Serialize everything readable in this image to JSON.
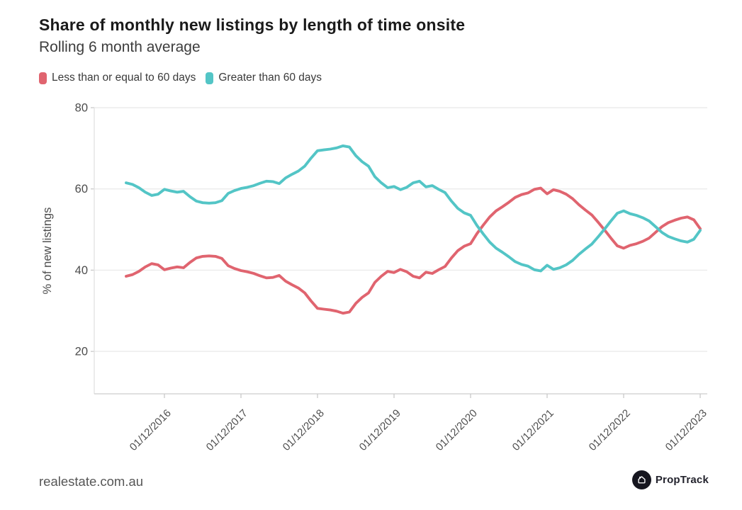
{
  "header": {
    "title": "Share of monthly new listings by length of time onsite",
    "subtitle": "Rolling 6 month average"
  },
  "legend": [
    {
      "label": "Less than or equal to 60 days",
      "color": "#e0646f"
    },
    {
      "label": "Greater than 60 days",
      "color": "#53c5c6"
    }
  ],
  "footer": {
    "site": "realestate.com.au",
    "logo_text": "PropTrack"
  },
  "chart_data": {
    "type": "line",
    "title": "Share of monthly new listings by length of time onsite",
    "subtitle": "Rolling 6 month average",
    "xlabel": "",
    "ylabel": "% of new listings",
    "ylim": [
      10,
      80
    ],
    "y_ticks": [
      80,
      60,
      40,
      20
    ],
    "grid": "horizontal",
    "legend_position": "top-left",
    "x_freq": "monthly",
    "x_start": "01/06/2016",
    "x_end": "01/12/2023",
    "x_tick_labels": [
      "01/12/2016",
      "01/12/2017",
      "01/12/2018",
      "01/12/2019",
      "01/12/2020",
      "01/12/2021",
      "01/12/2022",
      "01/12/2023"
    ],
    "months": [
      "2016-06",
      "2016-07",
      "2016-08",
      "2016-09",
      "2016-10",
      "2016-11",
      "2016-12",
      "2017-01",
      "2017-02",
      "2017-03",
      "2017-04",
      "2017-05",
      "2017-06",
      "2017-07",
      "2017-08",
      "2017-09",
      "2017-10",
      "2017-11",
      "2017-12",
      "2018-01",
      "2018-02",
      "2018-03",
      "2018-04",
      "2018-05",
      "2018-06",
      "2018-07",
      "2018-08",
      "2018-09",
      "2018-10",
      "2018-11",
      "2018-12",
      "2019-01",
      "2019-02",
      "2019-03",
      "2019-04",
      "2019-05",
      "2019-06",
      "2019-07",
      "2019-08",
      "2019-09",
      "2019-10",
      "2019-11",
      "2019-12",
      "2020-01",
      "2020-02",
      "2020-03",
      "2020-04",
      "2020-05",
      "2020-06",
      "2020-07",
      "2020-08",
      "2020-09",
      "2020-10",
      "2020-11",
      "2020-12",
      "2021-01",
      "2021-02",
      "2021-03",
      "2021-04",
      "2021-05",
      "2021-06",
      "2021-07",
      "2021-08",
      "2021-09",
      "2021-10",
      "2021-11",
      "2021-12",
      "2022-01",
      "2022-02",
      "2022-03",
      "2022-04",
      "2022-05",
      "2022-06",
      "2022-07",
      "2022-08",
      "2022-09",
      "2022-10",
      "2022-11",
      "2022-12",
      "2023-01",
      "2023-02",
      "2023-03",
      "2023-04",
      "2023-05",
      "2023-06",
      "2023-07",
      "2023-08",
      "2023-09",
      "2023-10",
      "2023-11",
      "2023-12"
    ],
    "series": [
      {
        "name": "Less than or equal to 60 days",
        "color": "#e0646f",
        "values": [
          38.5,
          38.9,
          39.7,
          40.8,
          41.6,
          41.3,
          40.1,
          40.5,
          40.8,
          40.6,
          41.9,
          43.0,
          43.4,
          43.5,
          43.4,
          42.9,
          41.1,
          40.4,
          39.9,
          39.6,
          39.2,
          38.6,
          38.1,
          38.2,
          38.7,
          37.3,
          36.4,
          35.6,
          34.4,
          32.4,
          30.6,
          30.4,
          30.2,
          29.9,
          29.4,
          29.7,
          31.8,
          33.3,
          34.4,
          37.0,
          38.5,
          39.7,
          39.4,
          40.2,
          39.6,
          38.5,
          38.1,
          39.5,
          39.2,
          40.1,
          40.9,
          43.0,
          44.8,
          45.9,
          46.5,
          49.0,
          51.1,
          53.1,
          54.6,
          55.6,
          56.7,
          57.9,
          58.6,
          59.0,
          59.9,
          60.2,
          58.8,
          59.8,
          59.4,
          58.7,
          57.6,
          56.1,
          54.8,
          53.6,
          51.8,
          49.9,
          47.9,
          46.0,
          45.4,
          46.1,
          46.5,
          47.1,
          47.9,
          49.3,
          50.7,
          51.7,
          52.3,
          52.8,
          53.1,
          52.4,
          50.2
        ]
      },
      {
        "name": "Greater than 60 days",
        "color": "#53c5c6",
        "values": [
          61.5,
          61.1,
          60.3,
          59.2,
          58.4,
          58.7,
          59.9,
          59.5,
          59.2,
          59.4,
          58.1,
          57.0,
          56.6,
          56.5,
          56.6,
          57.1,
          58.9,
          59.6,
          60.1,
          60.4,
          60.8,
          61.4,
          61.9,
          61.8,
          61.3,
          62.7,
          63.6,
          64.4,
          65.6,
          67.6,
          69.4,
          69.6,
          69.8,
          70.1,
          70.6,
          70.3,
          68.2,
          66.7,
          65.6,
          63.0,
          61.5,
          60.3,
          60.6,
          59.8,
          60.4,
          61.5,
          61.9,
          60.5,
          60.8,
          59.9,
          59.1,
          57.0,
          55.2,
          54.1,
          53.5,
          51.0,
          48.9,
          46.9,
          45.4,
          44.4,
          43.3,
          42.1,
          41.4,
          41.0,
          40.1,
          39.8,
          41.2,
          40.2,
          40.6,
          41.3,
          42.4,
          43.9,
          45.2,
          46.4,
          48.2,
          50.1,
          52.1,
          54.0,
          54.6,
          53.9,
          53.5,
          52.9,
          52.1,
          50.7,
          49.3,
          48.3,
          47.7,
          47.2,
          46.9,
          47.6,
          49.8
        ]
      }
    ]
  }
}
